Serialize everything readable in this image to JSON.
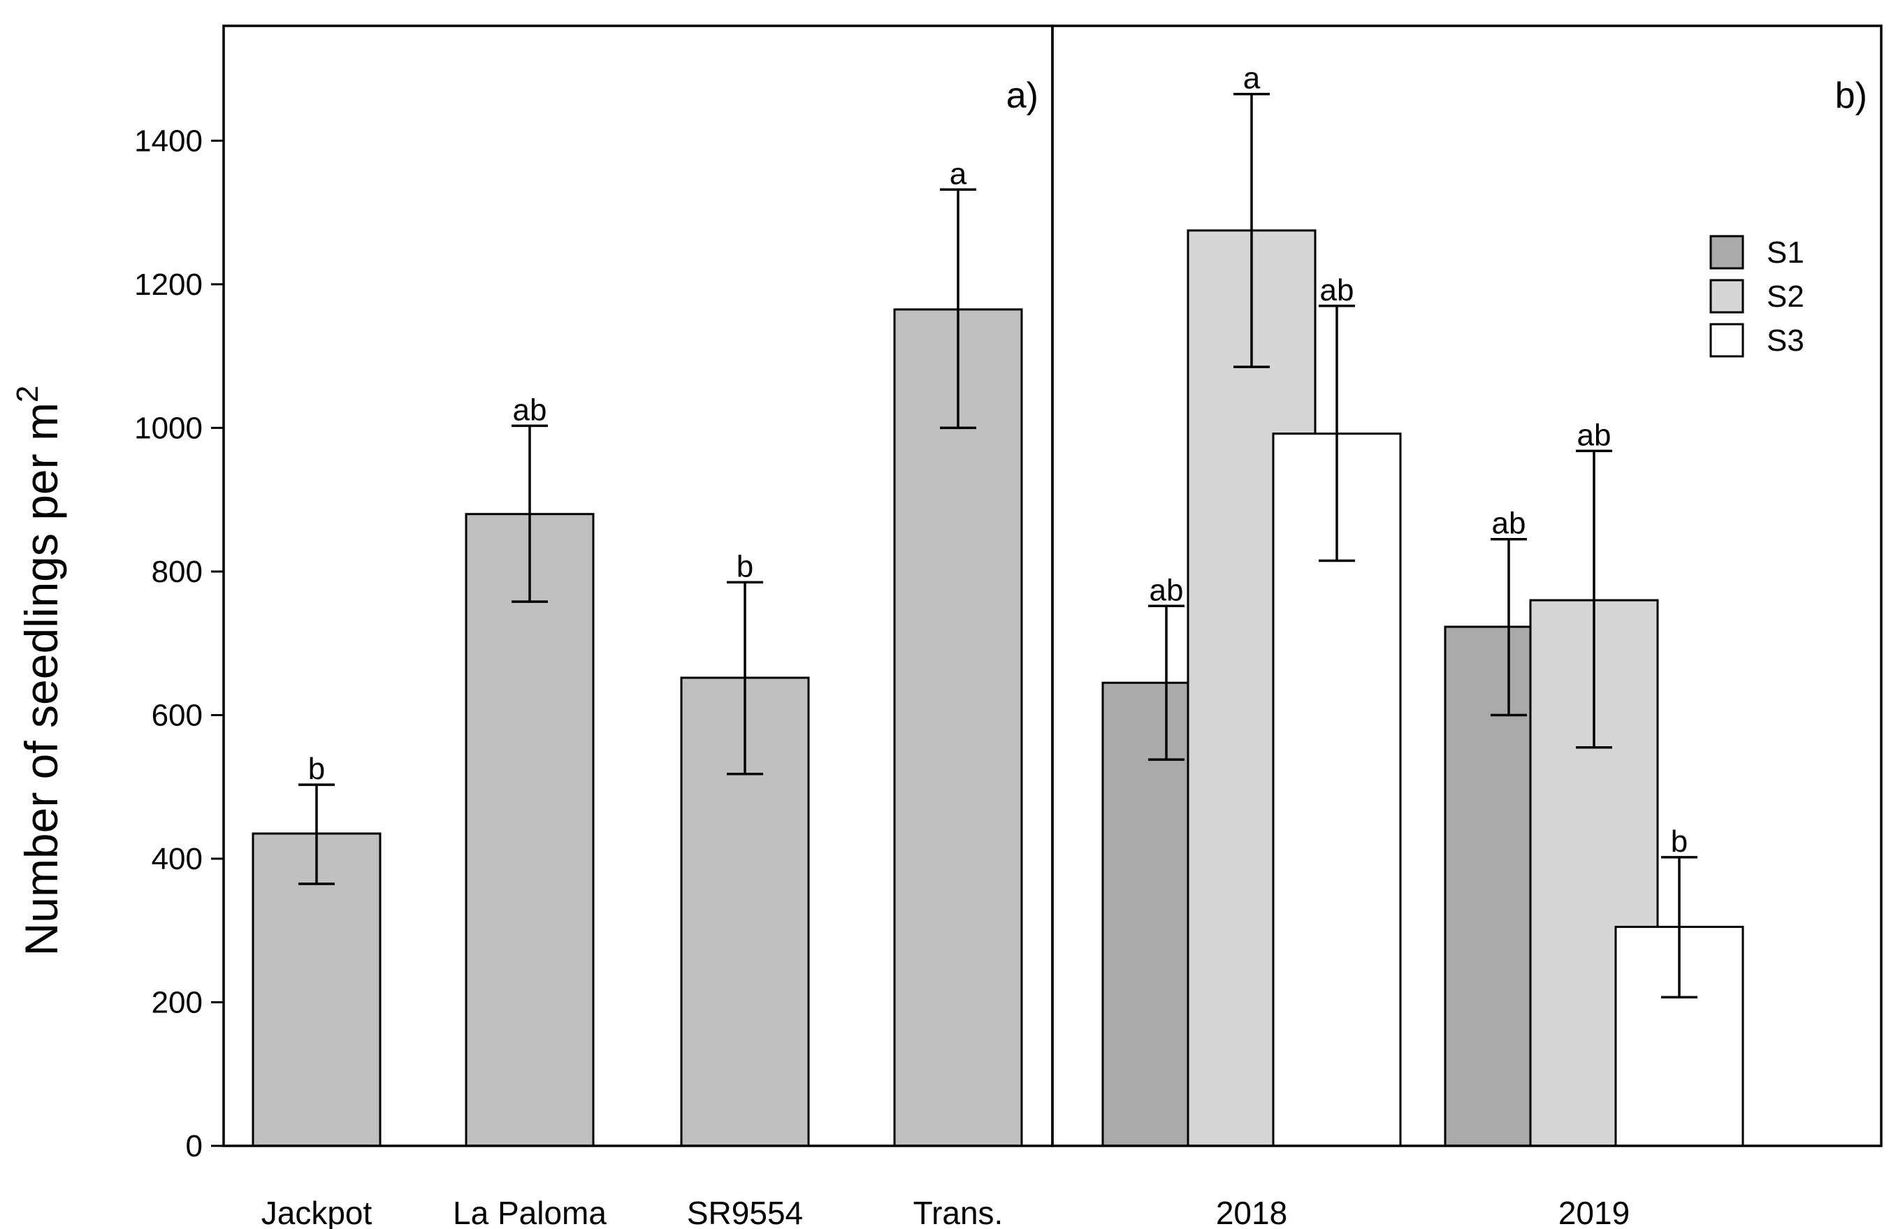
{
  "chart_data": {
    "type": "bar",
    "ylabel": "Number of seedlings per m",
    "ylabel_superscript": "2",
    "ylim": [
      0,
      1560
    ],
    "yticks": [
      0,
      200,
      400,
      600,
      800,
      1000,
      1200,
      1400
    ],
    "panels": [
      {
        "label": "a)",
        "categories": [
          "Jackpot",
          "La Paloma",
          "SR9554",
          "Trans."
        ],
        "series": [
          {
            "name": "",
            "color": "#c0c0c0",
            "values": [
              435,
              880,
              652,
              1165
            ],
            "error_low": [
              365,
              758,
              518,
              1000
            ],
            "error_high": [
              503,
              1003,
              785,
              1332
            ],
            "letters": [
              "b",
              "ab",
              "b",
              "a"
            ]
          }
        ]
      },
      {
        "label": "b)",
        "categories": [
          "2018",
          "2019"
        ],
        "series": [
          {
            "name": "S1",
            "color": "#aaaaaa",
            "values": [
              645,
              723
            ],
            "error_low": [
              538,
              600
            ],
            "error_high": [
              752,
              845
            ],
            "letters": [
              "ab",
              "ab"
            ]
          },
          {
            "name": "S2",
            "color": "#d6d6d6",
            "values": [
              1275,
              760
            ],
            "error_low": [
              1085,
              555
            ],
            "error_high": [
              1465,
              968
            ],
            "letters": [
              "a",
              "ab"
            ]
          },
          {
            "name": "S3",
            "color": "#ffffff",
            "values": [
              992,
              305
            ],
            "error_low": [
              815,
              207
            ],
            "error_high": [
              1170,
              402
            ],
            "letters": [
              "ab",
              "b"
            ]
          }
        ],
        "legend_position": "top-right"
      }
    ]
  }
}
